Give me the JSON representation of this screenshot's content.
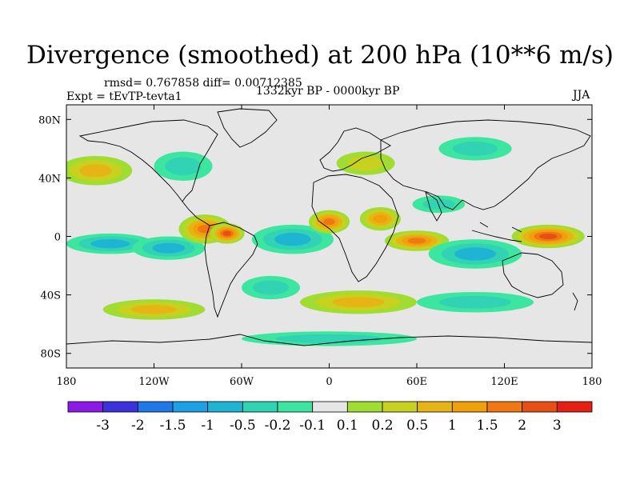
{
  "title": "Divergence (smoothed) at 200 hPa (10**6 m/s)",
  "stats_line": "rmsd= 0.767858 diff= 0.00712385",
  "experiment_line": "Expt = tEvTP-tevta1",
  "period_line": "1332kyr BP - 0000kyr BP",
  "season_label": "JJA",
  "axes": {
    "lon_range": [
      -180,
      180
    ],
    "lat_range": [
      -90,
      90
    ],
    "x_ticks": [
      {
        "lon": -180,
        "label": "180"
      },
      {
        "lon": -120,
        "label": "120W"
      },
      {
        "lon": -60,
        "label": "60W"
      },
      {
        "lon": 0,
        "label": "0"
      },
      {
        "lon": 60,
        "label": "60E"
      },
      {
        "lon": 120,
        "label": "120E"
      },
      {
        "lon": 180,
        "label": "180"
      }
    ],
    "y_ticks": [
      {
        "lat": 80,
        "label": "80N"
      },
      {
        "lat": 40,
        "label": "40N"
      },
      {
        "lat": 0,
        "label": "0"
      },
      {
        "lat": -40,
        "label": "40S"
      },
      {
        "lat": -80,
        "label": "80S"
      }
    ]
  },
  "colorbar": {
    "colors": [
      "#8c1ae6",
      "#3c32dc",
      "#1e78e6",
      "#1ea0e6",
      "#1eb4d2",
      "#32d2b4",
      "#3ce6a0",
      "#e6e6e6",
      "#a0dc32",
      "#c8d21e",
      "#e6b414",
      "#f0a00a",
      "#f07814",
      "#e65014",
      "#e61e14"
    ],
    "labels": [
      "-3",
      "-2",
      "-1.5",
      "-1",
      "-0.5",
      "-0.2",
      "-0.1",
      "0.1",
      "0.2",
      "0.5",
      "1",
      "1.5",
      "2",
      "3"
    ]
  },
  "features": [
    {
      "name": "pacific-neg-band",
      "lon": -150,
      "lat": -5,
      "rlon": 30,
      "rlat": 7,
      "cls": -3
    },
    {
      "name": "east-pacific-neg",
      "lon": -110,
      "lat": -8,
      "rlon": 25,
      "rlat": 8,
      "cls": -3
    },
    {
      "name": "central-america-pos",
      "lon": -85,
      "lat": 5,
      "rlon": 18,
      "rlat": 10,
      "cls": 5
    },
    {
      "name": "amazon-pos",
      "lon": -70,
      "lat": 2,
      "rlon": 12,
      "rlat": 7,
      "cls": 6
    },
    {
      "name": "atlantic-strong-neg",
      "lon": -25,
      "lat": 0,
      "rlon": 18,
      "rlat": 5,
      "cls": -6
    },
    {
      "name": "atlantic-neg-ring",
      "lon": -25,
      "lat": -2,
      "rlon": 28,
      "rlat": 10,
      "cls": -3
    },
    {
      "name": "west-africa-pos",
      "lon": 0,
      "lat": 10,
      "rlon": 14,
      "rlat": 8,
      "cls": 5
    },
    {
      "name": "east-africa-pos",
      "lon": 35,
      "lat": 12,
      "rlon": 14,
      "rlat": 8,
      "cls": 4
    },
    {
      "name": "indian-ocean-pos",
      "lon": 60,
      "lat": -3,
      "rlon": 22,
      "rlat": 7,
      "cls": 5
    },
    {
      "name": "maritime-strong-neg",
      "lon": 105,
      "lat": -12,
      "rlon": 20,
      "rlat": 6,
      "cls": -6
    },
    {
      "name": "maritime-neg-ring",
      "lon": 100,
      "lat": -12,
      "rlon": 32,
      "rlat": 10,
      "cls": -3
    },
    {
      "name": "west-pacific-pos",
      "lon": 150,
      "lat": 0,
      "rlon": 25,
      "rlat": 8,
      "cls": 6
    },
    {
      "name": "south-asia-neg",
      "lon": 75,
      "lat": 22,
      "rlon": 18,
      "rlat": 6,
      "cls": -2
    },
    {
      "name": "north-pacific-pos",
      "lon": -160,
      "lat": 45,
      "rlon": 25,
      "rlat": 10,
      "cls": 3
    },
    {
      "name": "north-america-neg",
      "lon": -100,
      "lat": 48,
      "rlon": 20,
      "rlat": 10,
      "cls": -2
    },
    {
      "name": "europe-pos",
      "lon": 25,
      "lat": 50,
      "rlon": 20,
      "rlat": 8,
      "cls": 2
    },
    {
      "name": "siberia-neg",
      "lon": 100,
      "lat": 60,
      "rlon": 25,
      "rlat": 8,
      "cls": -2
    },
    {
      "name": "southern-pos-band-1",
      "lon": 20,
      "lat": -45,
      "rlon": 40,
      "rlat": 8,
      "cls": 3
    },
    {
      "name": "southern-pos-band-2",
      "lon": -120,
      "lat": -50,
      "rlon": 35,
      "rlat": 7,
      "cls": 3
    },
    {
      "name": "southern-neg-band",
      "lon": 100,
      "lat": -45,
      "rlon": 40,
      "rlat": 7,
      "cls": -2
    },
    {
      "name": "south-atlantic-neg",
      "lon": -40,
      "lat": -35,
      "rlon": 20,
      "rlat": 8,
      "cls": -2
    },
    {
      "name": "antarctic-coast-neg",
      "lon": 0,
      "lat": -70,
      "rlon": 60,
      "rlat": 5,
      "cls": -2
    }
  ]
}
